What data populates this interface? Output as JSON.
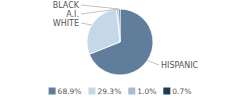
{
  "chart_data": {
    "type": "pie",
    "categories": [
      "HISPANIC",
      "WHITE",
      "A.I.",
      "BLACK"
    ],
    "values": [
      68.9,
      29.3,
      1.0,
      0.7
    ],
    "value_labels": [
      "68.9%",
      "29.3%",
      "1.0%",
      "0.7%"
    ],
    "colors": [
      "#607d9b",
      "#c5d8e8",
      "#a4bdd0",
      "#1c3a55"
    ],
    "legend": "bottom"
  }
}
